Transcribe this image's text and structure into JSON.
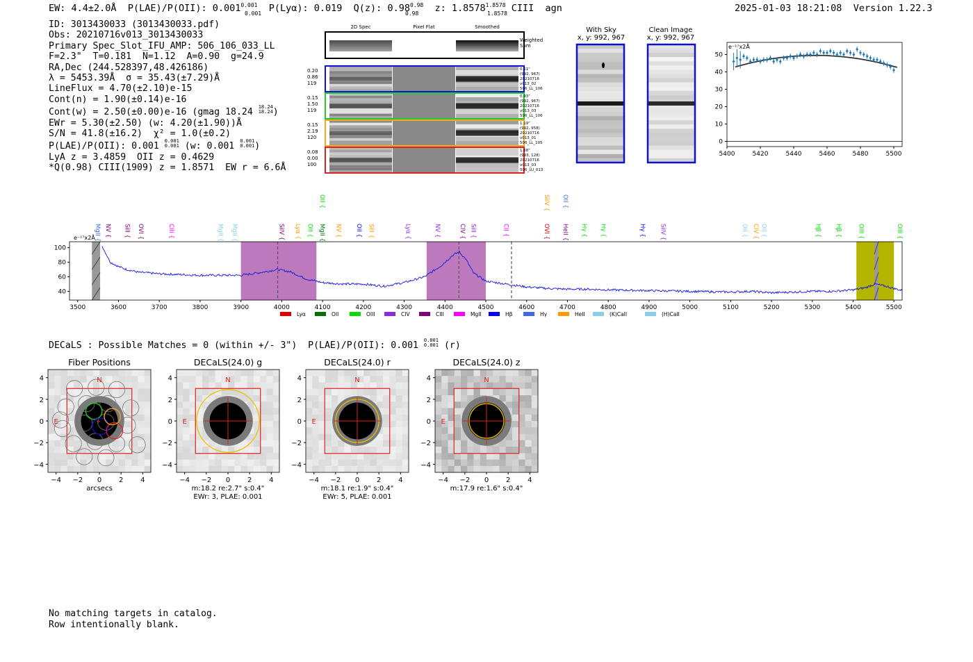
{
  "header": {
    "ew": "EW: 4.4±2.0Å",
    "plae_label": "P(LAE)/P(OII): 0.001",
    "plae_sup": "0.001",
    "plae_sub": "0.001",
    "plya": "P(Lyα): 0.019",
    "qz_label": "Q(z): 0.98",
    "qz_sup": "0.98",
    "qz_sub": "0.98",
    "z_label": "z: 1.8578",
    "z_sup": "1.8578",
    "z_sub": "1.8578",
    "line": "CIII",
    "flag": "agn",
    "datetime": "2025-01-03 18:21:08",
    "version": "Version 1.22.3"
  },
  "info": [
    "ID: 3013430033 (3013430033.pdf)",
    "Obs: 20210716v013_3013430033",
    "Primary Spec_Slot_IFU_AMP: 506_106_033_LL",
    "F=2.3\"  T=0.181  N=1.12  A=0.90  g=24.9",
    "RA,Dec (244.528397,48.426186)",
    "λ = 5453.39Å  σ = 35.43(±7.29)Å",
    "LineFlux = 4.70(±2.10)e-15",
    "Cont(n) = 1.90(±0.14)e-16",
    "Cont(w) = 2.50(±0.00)e-16 (gmag 18.24",
    "EWr = 5.30(±2.50) (w: 4.20(±1.90))Å",
    "S/N = 41.8(±16.2)  χ² = 1.0(±0.2)",
    "P(LAE)/P(OII): 0.001",
    "LyA z = 3.4859  OII z = 0.4629",
    "*Q(0.98) CIII(1909) z = 1.8571  EW r = 6.6Å"
  ],
  "info_extra": {
    "gmag_sup": "18.24",
    "gmag_sub": "18.24",
    "plae_sup": "0.001",
    "plae_sub": "0.001",
    "plae_w": "(w: 0.001",
    "plae_w_sup": "0.001",
    "plae_w_sub": "0.001"
  },
  "cutouts": {
    "col_titles": [
      "2D Spec",
      "Pixel Flat",
      "Smoothed"
    ],
    "weighted_label": "Weighted Sum",
    "rows": [
      {
        "stats": [
          "0.20",
          "0.86",
          "119"
        ],
        "meta": [
          "0.51\"",
          "(992, 967)",
          "20210716",
          "v013_02",
          "506_LL_106"
        ],
        "color": "#1010e0"
      },
      {
        "stats": [
          "0.15",
          "1.50",
          "119"
        ],
        "meta": [
          "0.93\"",
          "(992, 967)",
          "20210716",
          "v013_03",
          "506_LL_106"
        ],
        "color": "#22cc22"
      },
      {
        "stats": [
          "0.15",
          "2.19",
          "120"
        ],
        "meta": [
          "1.19\"",
          "(992, 958)",
          "20210716",
          "v013_01",
          "506_LL_105"
        ],
        "color": "#f5a623"
      },
      {
        "stats": [
          "0.08",
          "0.00",
          "100"
        ],
        "meta": [
          "1.68\"",
          "(993, 128)",
          "20210716",
          "v013_03",
          "506_LU_013"
        ],
        "color": "#e02020"
      }
    ]
  },
  "sky_panels": {
    "with_sky_title": "With Sky",
    "with_sky_xy": "x, y: 992, 967",
    "clean_title": "Clean Image",
    "clean_xy": "x, y: 992, 967"
  },
  "zoom_chart": {
    "unit_label": "e⁻¹⁷x2Å",
    "x_ticks": [
      "5400",
      "5420",
      "5440",
      "5460",
      "5480",
      "5500"
    ],
    "y_ticks": [
      "0",
      "10",
      "20",
      "30",
      "40",
      "50"
    ]
  },
  "chart_data": [
    {
      "type": "scatter",
      "title": "Zoom spectrum around line",
      "xlabel": "",
      "ylabel": "e-17 x2Å",
      "xlim": [
        5400,
        5505
      ],
      "ylim": [
        -3,
        57
      ],
      "x": [
        5404,
        5406,
        5408,
        5410,
        5412,
        5414,
        5416,
        5418,
        5420,
        5422,
        5424,
        5426,
        5428,
        5430,
        5432,
        5434,
        5436,
        5438,
        5440,
        5442,
        5444,
        5446,
        5448,
        5450,
        5452,
        5454,
        5456,
        5458,
        5460,
        5462,
        5464,
        5466,
        5468,
        5470,
        5472,
        5474,
        5476,
        5478,
        5480,
        5482,
        5484,
        5486,
        5488,
        5490,
        5492,
        5494,
        5496,
        5498,
        5500
      ],
      "y": [
        46,
        48,
        47,
        49,
        48,
        46,
        47,
        47,
        46,
        47,
        47,
        48,
        46,
        47,
        46,
        48,
        48,
        49,
        48,
        49,
        50,
        49,
        50,
        50,
        51,
        50,
        52,
        51,
        51,
        52,
        51,
        50,
        51,
        50,
        52,
        51,
        50,
        53,
        51,
        50,
        49,
        48,
        47,
        47,
        46,
        45,
        44,
        43,
        41
      ],
      "model_peak": 49.5
    },
    {
      "type": "line",
      "title": "Full spectrum",
      "xlabel": "",
      "ylabel": "e-17 x2Å",
      "xlim": [
        3480,
        5520
      ],
      "ylim": [
        28,
        108
      ],
      "x_ticks": [
        3500,
        3600,
        3700,
        3800,
        3900,
        4000,
        4100,
        4200,
        4300,
        4400,
        4500,
        4600,
        4700,
        4800,
        4900,
        5000,
        5100,
        5200,
        5300,
        5400,
        5500
      ],
      "y_ticks": [
        40,
        60,
        80,
        100
      ],
      "x": [
        3560,
        3580,
        3600,
        3620,
        3650,
        3680,
        3700,
        3750,
        3800,
        3850,
        3900,
        3950,
        3990,
        4020,
        4060,
        4100,
        4150,
        4200,
        4250,
        4300,
        4350,
        4390,
        4420,
        4435,
        4450,
        4470,
        4500,
        4550,
        4600,
        4650,
        4700,
        4750,
        4800,
        4900,
        5000,
        5100,
        5150,
        5200,
        5250,
        5300,
        5350,
        5400,
        5430,
        5453,
        5480,
        5520
      ],
      "y": [
        102,
        80,
        74,
        70,
        66,
        65,
        64,
        63,
        62,
        62,
        62,
        66,
        70,
        67,
        57,
        52,
        50,
        50,
        47,
        52,
        60,
        75,
        90,
        94,
        85,
        65,
        54,
        50,
        46,
        44,
        43,
        43,
        42,
        41,
        40,
        39,
        40,
        38,
        39,
        40,
        40,
        42,
        45,
        50,
        47,
        41
      ],
      "shaded_regions": [
        [
          3900,
          4085
        ],
        [
          4355,
          4500
        ]
      ],
      "highlight_regions": [
        [
          5408,
          5500
        ]
      ],
      "dashed_lines": [
        3990,
        4434,
        4563
      ],
      "legend": [
        "Lyα",
        "OII",
        "OIII",
        "CIV",
        "CIII",
        "MgII",
        "Hβ",
        "Hγ",
        "HeII",
        "(K)CaII",
        "(H)CaII"
      ],
      "legend_colors": [
        "#e00000",
        "#007000",
        "#00dd00",
        "#8a2be2",
        "#800080",
        "#ff00ff",
        "#0000ff",
        "#4169e1",
        "#ff9900",
        "#87ceeb",
        "#87ceeb"
      ],
      "line_labels": [
        {
          "name": "MgII",
          "x": 3540,
          "color": "#4169e1",
          "tier": 0
        },
        {
          "name": "NV",
          "x": 3565,
          "color": "#800080",
          "tier": 0
        },
        {
          "name": "SiII",
          "x": 3612,
          "color": "#800080",
          "tier": 0
        },
        {
          "name": "OVI",
          "x": 3645,
          "color": "#800080",
          "tier": 0
        },
        {
          "name": "CIII",
          "x": 3720,
          "color": "#ff00ff",
          "tier": 0
        },
        {
          "name": "MgII",
          "x": 3840,
          "color": "#87ceeb",
          "tier": 0
        },
        {
          "name": "MgII",
          "x": 3875,
          "color": "#87ceeb",
          "tier": 0
        },
        {
          "name": "SiIV",
          "x": 3990,
          "color": "#800080",
          "tier": 0
        },
        {
          "name": "Lyα",
          "x": 4030,
          "color": "#ff9900",
          "tier": 0
        },
        {
          "name": "OII",
          "x": 4060,
          "color": "#00dd00",
          "tier": 0
        },
        {
          "name": "MgII",
          "x": 4090,
          "color": "#007000",
          "tier": 0
        },
        {
          "name": "OII",
          "x": 4090,
          "color": "#00dd00",
          "tier": 1
        },
        {
          "name": "NV",
          "x": 4130,
          "color": "#ff9900",
          "tier": 0
        },
        {
          "name": "OII",
          "x": 4180,
          "color": "#0000ff",
          "tier": 0
        },
        {
          "name": "SiII",
          "x": 4210,
          "color": "#ff9900",
          "tier": 0
        },
        {
          "name": "Lyα",
          "x": 4300,
          "color": "#8a2be2",
          "tier": 0
        },
        {
          "name": "NV",
          "x": 4372,
          "color": "#8a2be2",
          "tier": 0
        },
        {
          "name": "CIV",
          "x": 4434,
          "color": "#800080",
          "tier": 0
        },
        {
          "name": "SiII",
          "x": 4460,
          "color": "#8a2be2",
          "tier": 0
        },
        {
          "name": "CII",
          "x": 4540,
          "color": "#ff00ff",
          "tier": 0
        },
        {
          "name": "OVI",
          "x": 4640,
          "color": "#e00000",
          "tier": 0
        },
        {
          "name": "SiIV",
          "x": 4640,
          "color": "#ff9900",
          "tier": 1
        },
        {
          "name": "HeII",
          "x": 4686,
          "color": "#800080",
          "tier": 0
        },
        {
          "name": "OII",
          "x": 4686,
          "color": "#4169e1",
          "tier": 1
        },
        {
          "name": "Hγ",
          "x": 4732,
          "color": "#00dd00",
          "tier": 0
        },
        {
          "name": "Hγ",
          "x": 4778,
          "color": "#00dd00",
          "tier": 0
        },
        {
          "name": "Hγ",
          "x": 4875,
          "color": "#0000ff",
          "tier": 0
        },
        {
          "name": "SiIV",
          "x": 4925,
          "color": "#8a2be2",
          "tier": 0
        },
        {
          "name": "OII",
          "x": 5125,
          "color": "#87ceeb",
          "tier": 0
        },
        {
          "name": "CIV",
          "x": 5152,
          "color": "#ff9900",
          "tier": 0
        },
        {
          "name": "OII",
          "x": 5172,
          "color": "#87ceeb",
          "tier": 0
        },
        {
          "name": "Hβ",
          "x": 5305,
          "color": "#00dd00",
          "tier": 0
        },
        {
          "name": "Hβ",
          "x": 5355,
          "color": "#00dd00",
          "tier": 0
        },
        {
          "name": "OIII",
          "x": 5410,
          "color": "#00dd00",
          "tier": 0
        },
        {
          "name": "OIII",
          "x": 5505,
          "color": "#00dd00",
          "tier": 0
        }
      ]
    }
  ],
  "decals": {
    "summary": "DECaLS : Possible Matches = 0 (within +/- 3\")  P(LAE)/P(OII): 0.001",
    "summary_sup": "0.001",
    "summary_sub": "0.001",
    "summary_tail": "(r)",
    "panels": [
      {
        "title": "Fiber Positions",
        "caption1": "arcsecs",
        "caption2": ""
      },
      {
        "title": "DECaLS(24.0) g",
        "caption1": "m:18.2  re:2.7\"  s:0.4\"",
        "caption2": "EWr: 3, PLAE: 0.001",
        "ring": 2.9
      },
      {
        "title": "DECaLS(24.0) r",
        "caption1": "m:18.1  re:1.9\"  s:0.4\"",
        "caption2": "EWr: 5, PLAE: 0.001",
        "ring": 2.0
      },
      {
        "title": "DECaLS(24.0) z",
        "caption1": "m:17.9  re:1.6\"  s:0.4\"",
        "caption2": "",
        "ring": 1.6
      }
    ],
    "axis_ticks": [
      "−4",
      "−2",
      "0",
      "2",
      "4"
    ],
    "north": "N",
    "east": "E"
  },
  "footer": [
    "No matching targets in catalog.",
    "Row intentionally blank."
  ]
}
